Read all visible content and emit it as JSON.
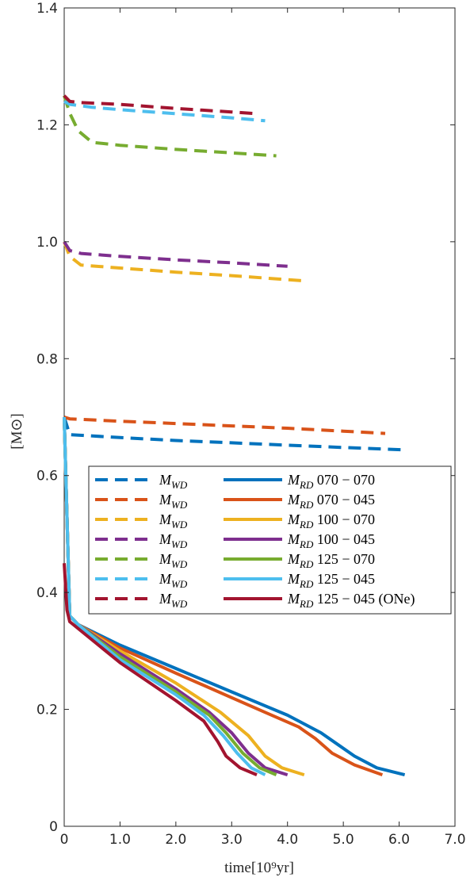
{
  "chart_data": {
    "type": "line",
    "xlabel": "time[10⁹yr]",
    "ylabel": "[M⊙]",
    "xlim": [
      0,
      7
    ],
    "ylim": [
      0,
      1.4
    ],
    "xticks": [
      "0",
      "1.0",
      "2.0",
      "3.0",
      "4.0",
      "5.0",
      "6.0",
      "7.0"
    ],
    "xtick_values": [
      0,
      1,
      2,
      3,
      4,
      5,
      6,
      7
    ],
    "yticks": [
      "0",
      "0.2",
      "0.4",
      "0.6",
      "0.8",
      "1.0",
      "1.2",
      "1.4"
    ],
    "ytick_values": [
      0,
      0.2,
      0.4,
      0.6,
      0.8,
      1.0,
      1.2,
      1.4
    ],
    "grid": false,
    "legend_position": "center-right",
    "series": [
      {
        "name": "M_WD",
        "style": "dashed",
        "color": "#0072BD",
        "x": [
          0,
          0.1,
          1.0,
          2.0,
          3.0,
          4.0,
          5.0,
          6.1
        ],
        "y": [
          0.7,
          0.67,
          0.665,
          0.66,
          0.656,
          0.652,
          0.648,
          0.644
        ]
      },
      {
        "name": "M_WD",
        "style": "dashed",
        "color": "#D95319",
        "x": [
          0,
          0.1,
          1.0,
          2.0,
          3.0,
          4.0,
          5.0,
          5.75
        ],
        "y": [
          0.7,
          0.697,
          0.693,
          0.689,
          0.685,
          0.681,
          0.676,
          0.672
        ]
      },
      {
        "name": "M_WD",
        "style": "dashed",
        "color": "#EDB120",
        "x": [
          0,
          0.1,
          0.3,
          1.0,
          2.0,
          3.0,
          4.3
        ],
        "y": [
          1.0,
          0.975,
          0.96,
          0.955,
          0.948,
          0.942,
          0.933
        ]
      },
      {
        "name": "M_WD",
        "style": "dashed",
        "color": "#7E2F8E",
        "x": [
          0,
          0.1,
          0.3,
          1.0,
          2.0,
          3.0,
          4.0
        ],
        "y": [
          1.0,
          0.985,
          0.98,
          0.975,
          0.969,
          0.964,
          0.958
        ]
      },
      {
        "name": "M_WD",
        "style": "dashed",
        "color": "#77AC30",
        "x": [
          0,
          0.1,
          0.25,
          0.5,
          1.0,
          2.0,
          3.0,
          3.8
        ],
        "y": [
          1.25,
          1.22,
          1.19,
          1.17,
          1.165,
          1.158,
          1.152,
          1.147
        ]
      },
      {
        "name": "M_WD",
        "style": "dashed",
        "color": "#4DBEEE",
        "x": [
          0,
          0.1,
          0.5,
          1.0,
          2.0,
          3.0,
          3.6
        ],
        "y": [
          1.24,
          1.235,
          1.23,
          1.226,
          1.219,
          1.212,
          1.207
        ]
      },
      {
        "name": "M_WD",
        "style": "dashed",
        "color": "#A2142F",
        "x": [
          0,
          0.1,
          0.3,
          1.0,
          2.0,
          3.0,
          3.45
        ],
        "y": [
          1.25,
          1.24,
          1.238,
          1.235,
          1.228,
          1.222,
          1.219
        ]
      },
      {
        "name": "M_RD 070 − 070",
        "style": "solid",
        "color": "#0072BD",
        "x": [
          0,
          0.1,
          0.25,
          1.0,
          2.0,
          3.0,
          4.0,
          4.6,
          4.9,
          5.2,
          5.6,
          6.1
        ],
        "y": [
          0.7,
          0.36,
          0.345,
          0.31,
          0.27,
          0.23,
          0.19,
          0.16,
          0.14,
          0.12,
          0.1,
          0.088
        ]
      },
      {
        "name": "M_RD 070 − 045",
        "style": "solid",
        "color": "#D95319",
        "x": [
          0,
          0.1,
          0.25,
          1.0,
          2.0,
          3.0,
          3.6,
          4.2,
          4.5,
          4.8,
          5.2,
          5.7
        ],
        "y": [
          0.7,
          0.36,
          0.345,
          0.305,
          0.262,
          0.22,
          0.195,
          0.17,
          0.15,
          0.125,
          0.105,
          0.088
        ]
      },
      {
        "name": "M_RD 100 − 070",
        "style": "solid",
        "color": "#EDB120",
        "x": [
          0,
          0.1,
          0.25,
          1.0,
          2.0,
          2.8,
          3.3,
          3.6,
          3.9,
          4.3
        ],
        "y": [
          0.7,
          0.36,
          0.345,
          0.3,
          0.245,
          0.195,
          0.155,
          0.12,
          0.1,
          0.088
        ]
      },
      {
        "name": "M_RD 100 − 045",
        "style": "solid",
        "color": "#7E2F8E",
        "x": [
          0,
          0.1,
          0.25,
          1.0,
          2.0,
          2.6,
          3.0,
          3.3,
          3.6,
          4.0
        ],
        "y": [
          0.7,
          0.36,
          0.345,
          0.295,
          0.235,
          0.195,
          0.16,
          0.125,
          0.1,
          0.088
        ]
      },
      {
        "name": "M_RD 125 − 070",
        "style": "solid",
        "color": "#77AC30",
        "x": [
          0,
          0.1,
          0.25,
          1.0,
          2.0,
          2.6,
          2.9,
          3.2,
          3.5,
          3.8
        ],
        "y": [
          0.7,
          0.36,
          0.345,
          0.29,
          0.23,
          0.19,
          0.16,
          0.125,
          0.1,
          0.088
        ]
      },
      {
        "name": "M_RD 125 − 045",
        "style": "solid",
        "color": "#4DBEEE",
        "x": [
          0,
          0.1,
          0.25,
          1.0,
          2.0,
          2.5,
          2.85,
          3.1,
          3.35,
          3.6
        ],
        "y": [
          0.7,
          0.36,
          0.345,
          0.285,
          0.225,
          0.19,
          0.155,
          0.125,
          0.1,
          0.088
        ]
      },
      {
        "name": "M_RD 125 − 045 (ONe)",
        "style": "solid",
        "color": "#A2142F",
        "x": [
          0,
          0.05,
          0.1,
          1.0,
          2.0,
          2.5,
          2.75,
          2.9,
          3.15,
          3.45
        ],
        "y": [
          0.45,
          0.37,
          0.35,
          0.28,
          0.215,
          0.18,
          0.145,
          0.12,
          0.1,
          0.088
        ]
      }
    ]
  }
}
